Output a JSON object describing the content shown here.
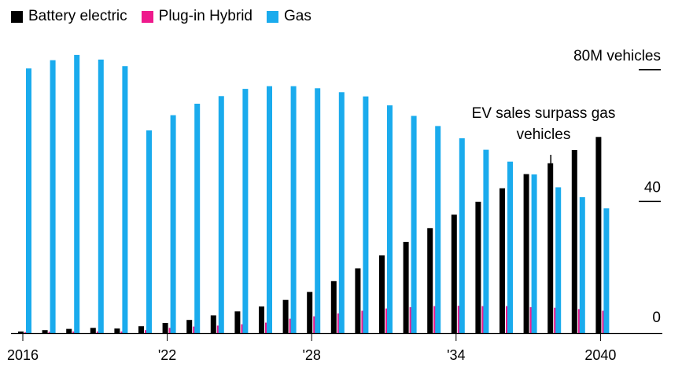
{
  "colors": {
    "battery": "#000000",
    "plugin": "#ee1a8c",
    "gas": "#1aabed"
  },
  "legend": [
    {
      "key": "battery",
      "label": "Battery electric"
    },
    {
      "key": "plugin",
      "label": "Plug-in Hybrid"
    },
    {
      "key": "gas",
      "label": "Gas"
    }
  ],
  "chart_data": {
    "type": "bar",
    "title": "",
    "xlabel": "",
    "ylabel": "",
    "ylim": [
      0,
      80
    ],
    "y_unit_label": "80M vehicles",
    "y_ticks": [
      {
        "value": 0,
        "label": "0"
      },
      {
        "value": 40,
        "label": "40"
      },
      {
        "value": 80,
        "label": "80M vehicles"
      }
    ],
    "x": [
      2016,
      2017,
      2018,
      2019,
      2020,
      2021,
      2022,
      2023,
      2024,
      2025,
      2026,
      2027,
      2028,
      2029,
      2030,
      2031,
      2032,
      2033,
      2034,
      2035,
      2036,
      2037,
      2038,
      2039,
      2040
    ],
    "x_tick_labels": [
      {
        "x": 2016,
        "label": "2016"
      },
      {
        "x": 2022,
        "label": "'22"
      },
      {
        "x": 2028,
        "label": "'28"
      },
      {
        "x": 2034,
        "label": "'34"
      },
      {
        "x": 2040,
        "label": "2040"
      }
    ],
    "series": [
      {
        "name": "Battery electric",
        "key": "battery",
        "values": [
          0.5,
          0.9,
          1.3,
          1.6,
          1.4,
          2.1,
          3.1,
          4.0,
          5.4,
          6.6,
          8.1,
          10.1,
          12.5,
          15.8,
          19.7,
          23.6,
          27.7,
          31.9,
          36.0,
          39.9,
          44.0,
          48.3,
          51.6,
          55.6,
          59.6
        ]
      },
      {
        "name": "Plug-in Hybrid",
        "key": "plugin",
        "values": [
          0.3,
          0.4,
          0.5,
          0.5,
          0.5,
          0.9,
          1.6,
          2.0,
          2.3,
          2.7,
          3.2,
          4.4,
          5.1,
          6.0,
          6.8,
          7.5,
          7.9,
          8.2,
          8.3,
          8.2,
          8.2,
          7.9,
          7.7,
          7.3,
          6.8
        ]
      },
      {
        "name": "Gas",
        "key": "gas",
        "values": [
          80.4,
          82.9,
          84.5,
          83.1,
          81.1,
          61.6,
          66.2,
          69.7,
          72.0,
          74.2,
          75.0,
          75.0,
          74.4,
          73.2,
          71.9,
          69.2,
          66.0,
          62.9,
          59.2,
          55.7,
          52.1,
          48.2,
          44.3,
          41.3,
          37.9
        ]
      }
    ],
    "annotation": {
      "text_lines": [
        "EV sales surpass gas",
        "vehicles"
      ],
      "x": 2038
    }
  }
}
